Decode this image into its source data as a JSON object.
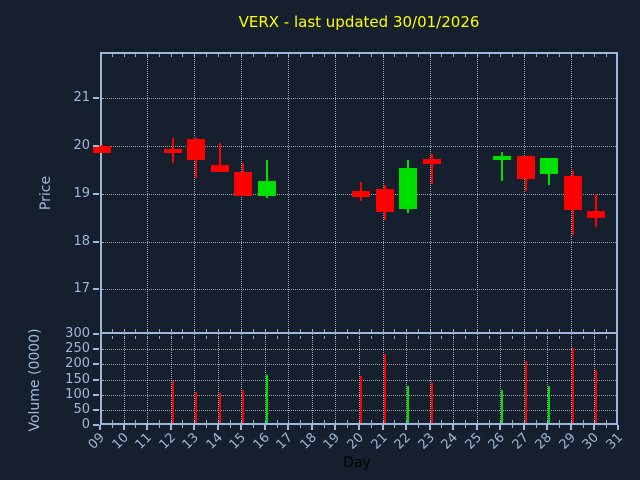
{
  "title": {
    "text": "VERX - last updated 30/01/2026"
  },
  "theme": {
    "background": "#151f2d",
    "axis_color": "#9db8da",
    "grid_color": "#c4ccd4",
    "title_color": "#ffff00",
    "xlabel_color": "#000000",
    "up_color": "#00e000",
    "down_color": "#ff0000"
  },
  "chart_data": {
    "type": "candlestick",
    "symbol": "VERX",
    "title": "VERX - last updated 30/01/2026",
    "xlabel": "Day",
    "price_ylabel": "Price",
    "volume_ylabel": "Volume (0000)",
    "x_tick_labels": [
      "09",
      "10",
      "11",
      "12",
      "13",
      "14",
      "15",
      "16",
      "17",
      "18",
      "19",
      "20",
      "21",
      "22",
      "23",
      "24",
      "25",
      "26",
      "27",
      "28",
      "29",
      "30",
      "31"
    ],
    "x_days": [
      9,
      10,
      11,
      12,
      13,
      14,
      15,
      16,
      17,
      18,
      19,
      20,
      21,
      22,
      23,
      24,
      25,
      26,
      27,
      28,
      29,
      30,
      31
    ],
    "xlim": [
      9,
      31
    ],
    "price_yticks": [
      21,
      20,
      19,
      18,
      17
    ],
    "price_ylim": [
      16.1,
      22.0
    ],
    "volume_yticks": [
      300,
      250,
      200,
      150,
      100,
      50,
      0
    ],
    "volume_ylim": [
      0,
      300
    ],
    "price_grid_days": [
      11,
      13,
      15,
      17,
      19,
      21,
      23,
      25,
      27,
      29
    ],
    "volume_grid_days": [
      10,
      11,
      12,
      13,
      14,
      15,
      16,
      17,
      18,
      19,
      20,
      21,
      22,
      23,
      24,
      25,
      26,
      27,
      28,
      29,
      30
    ],
    "grid": true,
    "legend": "none",
    "points": [
      {
        "day": 9,
        "open": 20.05,
        "high": 20.06,
        "low": 19.89,
        "close": 19.9,
        "volume": null
      },
      {
        "day": 12,
        "open": 19.98,
        "high": 20.2,
        "low": 19.68,
        "close": 19.89,
        "volume": 145
      },
      {
        "day": 13,
        "open": 20.18,
        "high": 20.2,
        "low": 19.38,
        "close": 19.74,
        "volume": 110
      },
      {
        "day": 14,
        "open": 19.64,
        "high": 20.1,
        "low": 19.5,
        "close": 19.5,
        "volume": 105
      },
      {
        "day": 15,
        "open": 19.5,
        "high": 19.69,
        "low": 18.99,
        "close": 18.99,
        "volume": 115
      },
      {
        "day": 16,
        "open": 18.99,
        "high": 19.74,
        "low": 18.95,
        "close": 19.32,
        "volume": 165
      },
      {
        "day": 20,
        "open": 19.1,
        "high": 19.29,
        "low": 18.89,
        "close": 18.98,
        "volume": 160
      },
      {
        "day": 21,
        "open": 19.15,
        "high": 19.22,
        "low": 18.49,
        "close": 18.66,
        "volume": 235
      },
      {
        "day": 22,
        "open": 18.73,
        "high": 19.74,
        "low": 18.64,
        "close": 19.58,
        "volume": 130
      },
      {
        "day": 23,
        "open": 19.76,
        "high": 19.87,
        "low": 19.24,
        "close": 19.67,
        "volume": 140
      },
      {
        "day": 26,
        "open": 19.74,
        "high": 19.92,
        "low": 19.31,
        "close": 19.83,
        "volume": 115
      },
      {
        "day": 27,
        "open": 19.83,
        "high": 19.83,
        "low": 19.1,
        "close": 19.36,
        "volume": 210
      },
      {
        "day": 28,
        "open": 19.45,
        "high": 19.8,
        "low": 19.22,
        "close": 19.8,
        "volume": 130
      },
      {
        "day": 29,
        "open": 19.41,
        "high": 19.51,
        "low": 18.18,
        "close": 18.71,
        "volume": 255
      },
      {
        "day": 30,
        "open": 18.68,
        "high": 19.03,
        "low": 18.35,
        "close": 18.54,
        "volume": 180
      }
    ]
  }
}
